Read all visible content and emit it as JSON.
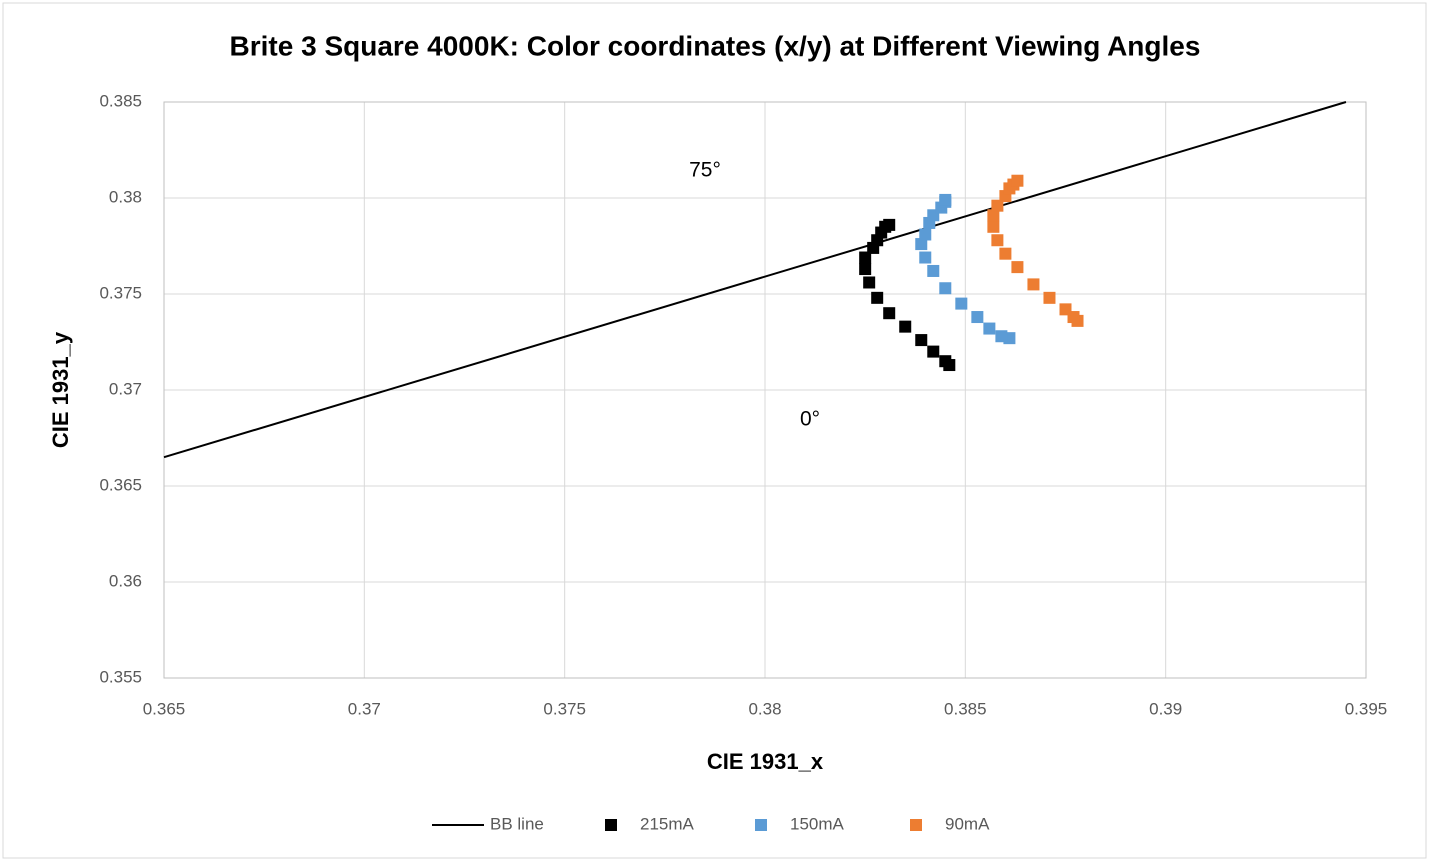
{
  "chart_data": {
    "type": "scatter",
    "title": "Brite 3 Square 4000K: Color coordinates (x/y) at Different Viewing Angles",
    "x_label": "CIE 1931_x",
    "y_label": "CIE 1931_y",
    "xlim": [
      0.365,
      0.395
    ],
    "xticks": [
      0.365,
      0.37,
      0.375,
      0.38,
      0.385,
      0.39,
      0.395
    ],
    "ylim": [
      0.355,
      0.385
    ],
    "yticks": [
      0.355,
      0.36,
      0.365,
      0.37,
      0.375,
      0.38,
      0.385
    ],
    "grid": true,
    "legend": "bottom",
    "annotations": [
      "75°",
      "0°"
    ],
    "series": [
      {
        "name": "BB line",
        "mode": "line",
        "color": "#000000",
        "x": [
          0.365,
          0.3945
        ],
        "values": [
          0.3665,
          0.385
        ]
      },
      {
        "name": "215mA",
        "mode": "markers",
        "color": "#000000",
        "x": [
          0.3846,
          0.3845,
          0.3842,
          0.3839,
          0.3835,
          0.3831,
          0.3828,
          0.3826,
          0.3825,
          0.3825,
          0.3827,
          0.3828,
          0.3829,
          0.383,
          0.3831
        ],
        "values": [
          0.3713,
          0.3715,
          0.372,
          0.3726,
          0.3733,
          0.374,
          0.3748,
          0.3756,
          0.3763,
          0.3769,
          0.3774,
          0.3778,
          0.3782,
          0.3785,
          0.3786
        ]
      },
      {
        "name": "150mA",
        "mode": "markers",
        "color": "#5b9bd5",
        "x": [
          0.3861,
          0.3859,
          0.3856,
          0.3853,
          0.3849,
          0.3845,
          0.3842,
          0.384,
          0.3839,
          0.384,
          0.3841,
          0.3842,
          0.3844,
          0.3845,
          0.3845
        ],
        "values": [
          0.3727,
          0.3728,
          0.3732,
          0.3738,
          0.3745,
          0.3753,
          0.3762,
          0.3769,
          0.3776,
          0.3781,
          0.3787,
          0.3791,
          0.3795,
          0.3798,
          0.3799
        ]
      },
      {
        "name": "90mA",
        "mode": "markers",
        "color": "#ed7d31",
        "x": [
          0.3878,
          0.3877,
          0.3875,
          0.3871,
          0.3867,
          0.3863,
          0.386,
          0.3858,
          0.3857,
          0.3857,
          0.3858,
          0.386,
          0.3861,
          0.3862,
          0.3863
        ],
        "values": [
          0.3736,
          0.3738,
          0.3742,
          0.3748,
          0.3755,
          0.3764,
          0.3771,
          0.3778,
          0.3785,
          0.3791,
          0.3796,
          0.3801,
          0.3805,
          0.3807,
          0.3809
        ]
      }
    ]
  }
}
